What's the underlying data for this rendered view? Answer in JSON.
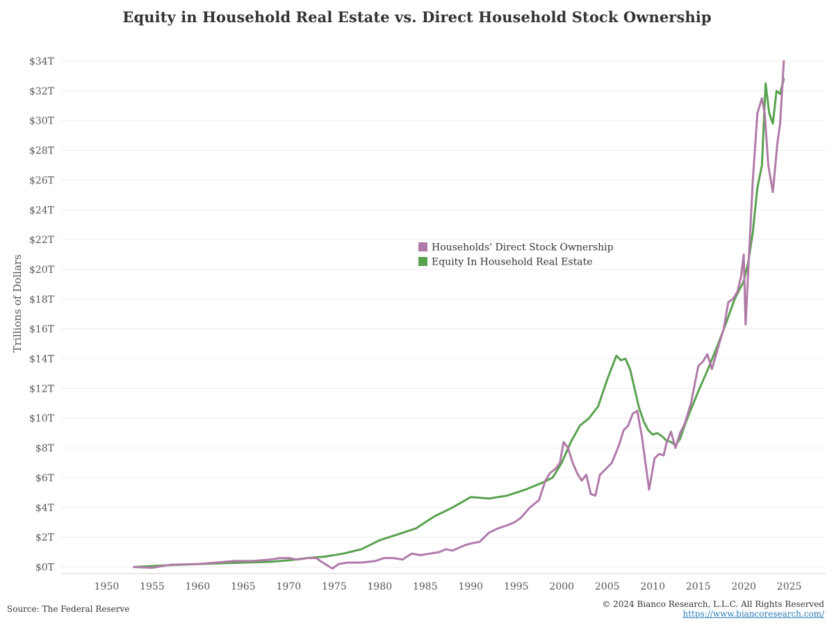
{
  "title": "Equity in Household Real Estate vs. Direct Household Stock Ownership",
  "footer": {
    "source": "Source: The Federal Reserve",
    "copyright": "© 2024 Bianco Research, L.L.C. All Rights Reserved",
    "link": "https://www.biancoresearch.com/"
  },
  "chart_data": {
    "type": "line",
    "title": "Equity in Household Real Estate vs. Direct Household Stock Ownership",
    "xlabel": "",
    "ylabel": "Trillions of Dollars",
    "xlim": [
      1945,
      2029
    ],
    "ylim": [
      0,
      35
    ],
    "x_ticks": [
      1950,
      1955,
      1960,
      1965,
      1970,
      1975,
      1980,
      1985,
      1990,
      1995,
      2000,
      2005,
      2010,
      2015,
      2020,
      2025
    ],
    "y_ticks": [
      0,
      2,
      4,
      6,
      8,
      10,
      12,
      14,
      16,
      18,
      20,
      22,
      24,
      26,
      28,
      30,
      32,
      34
    ],
    "y_tick_labels": [
      "$0T",
      "$2T",
      "$4T",
      "$6T",
      "$8T",
      "$10T",
      "$12T",
      "$14T",
      "$16T",
      "$18T",
      "$20T",
      "$22T",
      "$24T",
      "$26T",
      "$28T",
      "$30T",
      "$32T",
      "$34T"
    ],
    "grid": "horizontal",
    "legend_placement": "center",
    "series": [
      {
        "name": "Households' Direct Stock Ownership",
        "color": "#b07aa8",
        "x": [
          1953,
          1955,
          1957,
          1960,
          1962,
          1964,
          1966,
          1968,
          1969,
          1970,
          1971,
          1972,
          1973,
          1974,
          1974.8,
          1975.5,
          1976.5,
          1978,
          1979.5,
          1980.5,
          1981.5,
          1982.5,
          1983.5,
          1984.5,
          1985.5,
          1986.5,
          1987.3,
          1988,
          1989.5,
          1990.2,
          1991,
          1992,
          1993,
          1994,
          1994.8,
          1995.5,
          1996.5,
          1997.5,
          1998.2,
          1998.7,
          1999.3,
          1999.8,
          2000.2,
          2000.7,
          2001.2,
          2001.7,
          2002.2,
          2002.7,
          2003.2,
          2003.7,
          2004.2,
          2004.7,
          2005.5,
          2006.3,
          2006.8,
          2007.3,
          2007.8,
          2008.3,
          2008.8,
          2009.2,
          2009.6,
          2010.2,
          2010.7,
          2011.2,
          2011.5,
          2012,
          2012.5,
          2013,
          2013.5,
          2014.2,
          2015,
          2015.5,
          2016,
          2016.5,
          2017.3,
          2017.8,
          2018.3,
          2018.8,
          2019.3,
          2019.7,
          2020,
          2020.2,
          2020.5,
          2021,
          2021.5,
          2022,
          2022.3,
          2022.7,
          2023.2,
          2023.7,
          2024,
          2024.4
        ],
        "values": [
          0,
          -0.05,
          0.15,
          0.2,
          0.3,
          0.4,
          0.4,
          0.5,
          0.6,
          0.6,
          0.5,
          0.6,
          0.6,
          0.2,
          -0.1,
          0.2,
          0.3,
          0.3,
          0.4,
          0.6,
          0.6,
          0.5,
          0.9,
          0.8,
          0.9,
          1.0,
          1.2,
          1.1,
          1.5,
          1.6,
          1.7,
          2.3,
          2.6,
          2.8,
          3.0,
          3.3,
          4.0,
          4.5,
          5.8,
          6.3,
          6.6,
          7.0,
          8.4,
          8.0,
          7.0,
          6.3,
          5.8,
          6.2,
          4.9,
          4.8,
          6.2,
          6.5,
          7.0,
          8.2,
          9.2,
          9.5,
          10.3,
          10.5,
          8.8,
          7.0,
          5.2,
          7.3,
          7.6,
          7.5,
          8.3,
          9.1,
          8.0,
          9.0,
          9.6,
          11.0,
          13.5,
          13.8,
          14.3,
          13.3,
          15.0,
          16.0,
          17.8,
          18.0,
          18.5,
          19.5,
          21.0,
          16.3,
          20.0,
          26.0,
          30.5,
          31.5,
          30.5,
          27.0,
          25.2,
          28.5,
          29.8,
          34.0
        ]
      },
      {
        "name": "Equity In Household Real Estate",
        "color": "#59a14f",
        "x": [
          1953,
          1956,
          1960,
          1965,
          1968,
          1970,
          1972,
          1974,
          1976,
          1978,
          1980,
          1982,
          1984,
          1986,
          1988,
          1990,
          1992,
          1994,
          1996,
          1998,
          1999,
          2000,
          2001,
          2002,
          2003,
          2004,
          2005,
          2006,
          2006.5,
          2007,
          2007.5,
          2008,
          2008.5,
          2009,
          2009.5,
          2010,
          2010.5,
          2011,
          2011.5,
          2012,
          2012.5,
          2013,
          2013.5,
          2014,
          2015,
          2016,
          2017,
          2018,
          2019,
          2020,
          2020.5,
          2021,
          2021.5,
          2022,
          2022.4,
          2022.8,
          2023.2,
          2023.6,
          2024,
          2024.4
        ],
        "values": [
          0,
          0.1,
          0.2,
          0.3,
          0.35,
          0.45,
          0.6,
          0.7,
          0.9,
          1.2,
          1.8,
          2.2,
          2.6,
          3.4,
          4.0,
          4.7,
          4.6,
          4.8,
          5.2,
          5.7,
          6.0,
          7.0,
          8.4,
          9.5,
          10.0,
          10.8,
          12.6,
          14.2,
          13.9,
          14.0,
          13.3,
          12.0,
          10.7,
          9.8,
          9.2,
          8.9,
          9.0,
          8.8,
          8.5,
          8.4,
          8.2,
          8.6,
          9.5,
          10.3,
          11.8,
          13.2,
          14.7,
          16.3,
          18.0,
          19.2,
          20.5,
          22.5,
          25.5,
          27.0,
          32.5,
          30.5,
          29.8,
          32.0,
          31.8,
          32.8
        ]
      }
    ]
  }
}
